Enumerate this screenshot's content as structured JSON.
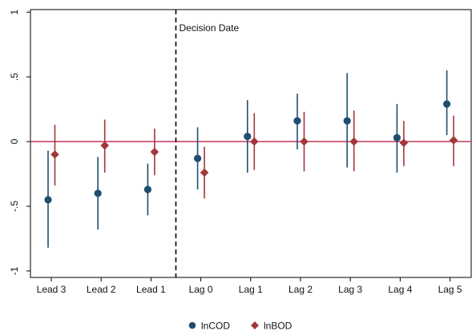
{
  "chart_data": {
    "type": "scatter",
    "categories": [
      "Lead 3",
      "Lead 2",
      "Lead 1",
      "Lag 0",
      "Lag 1",
      "Lag 2",
      "Lag 3",
      "Lag 4",
      "Lag 5"
    ],
    "ylim": [
      -1.05,
      1.02
    ],
    "yticks": [
      1,
      0.5,
      0,
      -0.5,
      -1
    ],
    "ytick_labels": [
      "1",
      ".5",
      "0",
      "-.5",
      "-1"
    ],
    "reference_line": {
      "y": 0,
      "color": "#c0254a"
    },
    "vertical_marker": {
      "position": "between Lead 1 and Lag 0",
      "label": "Decision Date",
      "style": "dashed"
    },
    "legend_position": "bottom-center",
    "grid": false,
    "series": [
      {
        "name": "lnCOD",
        "color": "#1f4e6e",
        "marker": "circle",
        "values": [
          -0.45,
          -0.4,
          -0.37,
          -0.13,
          0.04,
          0.16,
          0.16,
          0.03,
          0.29
        ],
        "ci_low": [
          -0.82,
          -0.68,
          -0.57,
          -0.37,
          -0.24,
          -0.06,
          -0.2,
          -0.24,
          0.05
        ],
        "ci_high": [
          -0.07,
          -0.12,
          -0.17,
          0.11,
          0.32,
          0.37,
          0.53,
          0.29,
          0.55
        ]
      },
      {
        "name": "lnBOD",
        "color": "#a3373b",
        "marker": "diamond",
        "values": [
          -0.1,
          -0.03,
          -0.08,
          -0.24,
          0.0,
          0.0,
          0.0,
          -0.01,
          0.01
        ],
        "ci_low": [
          -0.34,
          -0.24,
          -0.26,
          -0.44,
          -0.22,
          -0.23,
          -0.23,
          -0.19,
          -0.19
        ],
        "ci_high": [
          0.13,
          0.17,
          0.1,
          -0.04,
          0.22,
          0.23,
          0.24,
          0.16,
          0.2
        ]
      }
    ]
  }
}
